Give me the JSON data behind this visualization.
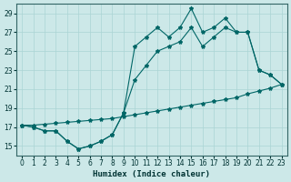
{
  "title": "",
  "xlabel": "Humidex (Indice chaleur)",
  "ylabel": "",
  "xlim": [
    -0.5,
    23.5
  ],
  "ylim": [
    14,
    30
  ],
  "yticks": [
    15,
    17,
    19,
    21,
    23,
    25,
    27,
    29
  ],
  "xticks": [
    0,
    1,
    2,
    3,
    4,
    5,
    6,
    7,
    8,
    9,
    10,
    11,
    12,
    13,
    14,
    15,
    16,
    17,
    18,
    19,
    20,
    21,
    22,
    23
  ],
  "background_color": "#cce8e8",
  "grid_color": "#aad4d4",
  "line_color": "#006666",
  "line1_x": [
    0,
    1,
    2,
    3,
    4,
    5,
    6,
    7,
    8,
    9,
    10,
    11,
    12,
    13,
    14,
    15,
    16,
    17,
    18,
    19,
    20,
    21,
    22,
    23
  ],
  "line1_y": [
    17.2,
    17.0,
    16.6,
    16.6,
    15.5,
    14.7,
    15.0,
    15.5,
    16.2,
    18.5,
    25.5,
    26.5,
    27.5,
    26.5,
    27.5,
    29.5,
    27.0,
    27.5,
    28.5,
    27.0,
    27.0,
    23.0,
    22.5,
    21.5
  ],
  "line2_x": [
    0,
    1,
    2,
    3,
    4,
    5,
    6,
    7,
    8,
    9,
    10,
    11,
    12,
    13,
    14,
    15,
    16,
    17,
    18,
    19,
    20,
    21,
    22,
    23
  ],
  "line2_y": [
    17.2,
    17.0,
    16.6,
    16.6,
    15.5,
    14.7,
    15.0,
    15.5,
    16.2,
    18.5,
    22.0,
    23.5,
    25.0,
    25.5,
    26.0,
    27.5,
    25.5,
    26.5,
    27.5,
    27.0,
    27.0,
    23.0,
    22.5,
    21.5
  ],
  "line3_x": [
    0,
    1,
    2,
    3,
    4,
    5,
    6,
    7,
    8,
    9,
    10,
    11,
    12,
    13,
    14,
    15,
    16,
    17,
    18,
    19,
    20,
    21,
    22,
    23
  ],
  "line3_y": [
    17.2,
    17.2,
    17.3,
    17.4,
    17.5,
    17.6,
    17.7,
    17.8,
    17.9,
    18.1,
    18.3,
    18.5,
    18.7,
    18.9,
    19.1,
    19.3,
    19.5,
    19.7,
    19.9,
    20.1,
    20.5,
    20.8,
    21.1,
    21.5
  ],
  "marker_size": 3,
  "line_width": 0.8,
  "tick_fontsize": 5.5,
  "xlabel_fontsize": 6.5
}
